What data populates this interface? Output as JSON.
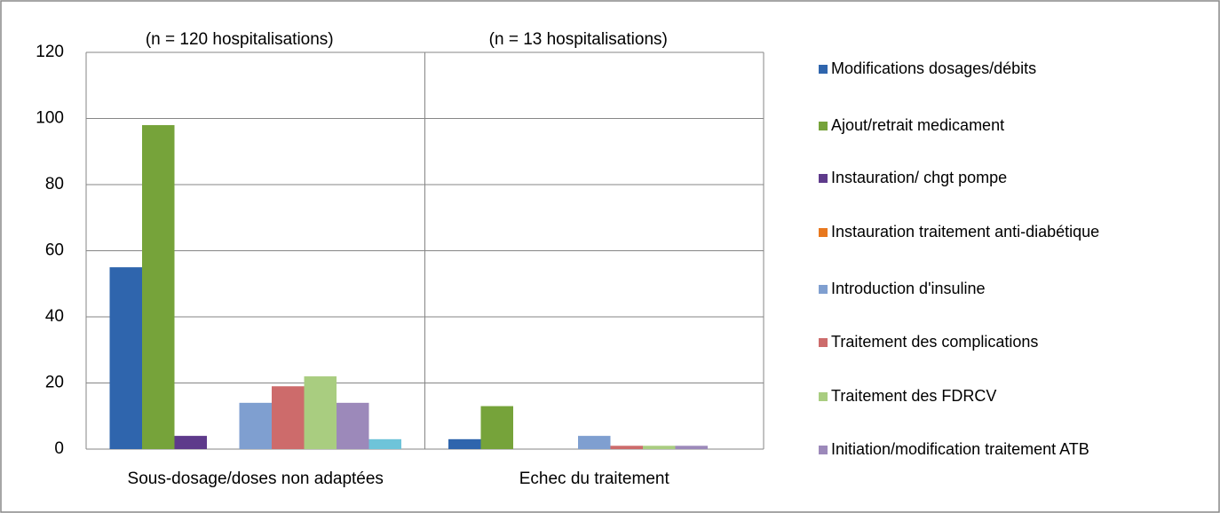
{
  "chart_data": {
    "type": "bar",
    "categories": [
      "Sous-dosage/doses non adaptées",
      "Echec du traitement"
    ],
    "annotations": [
      "(n = 120 hospitalisations)",
      "(n = 13 hospitalisations)"
    ],
    "series": [
      {
        "name": "Modifications dosages/débits",
        "color": "#2f65ad",
        "values": [
          55,
          3
        ]
      },
      {
        "name": "Ajout/retrait  medicament",
        "color": "#76a33a",
        "values": [
          98,
          13
        ]
      },
      {
        "name": "Instauration/ chgt pompe",
        "color": "#5e3a8b",
        "values": [
          4,
          0
        ]
      },
      {
        "name": "Instauration traitement anti-diabétique",
        "color": "#e8781e",
        "values": [
          0,
          0
        ]
      },
      {
        "name": "Introduction d'insuline",
        "color": "#7f9fd0",
        "values": [
          14,
          4
        ]
      },
      {
        "name": "Traitement des  complications",
        "color": "#cd6b6b",
        "values": [
          19,
          1
        ]
      },
      {
        "name": "Traitement des FDRCV",
        "color": "#a9cd80",
        "values": [
          22,
          1
        ]
      },
      {
        "name": "Initiation/modification  traitement ATB",
        "color": "#9c89ba",
        "values": [
          14,
          1
        ]
      },
      {
        "name": null,
        "color": "#6ec4d9",
        "values": [
          3,
          0
        ]
      }
    ],
    "ylim": [
      0,
      120
    ],
    "yticks": [
      0,
      20,
      40,
      60,
      80,
      100,
      120
    ],
    "grid": true
  }
}
